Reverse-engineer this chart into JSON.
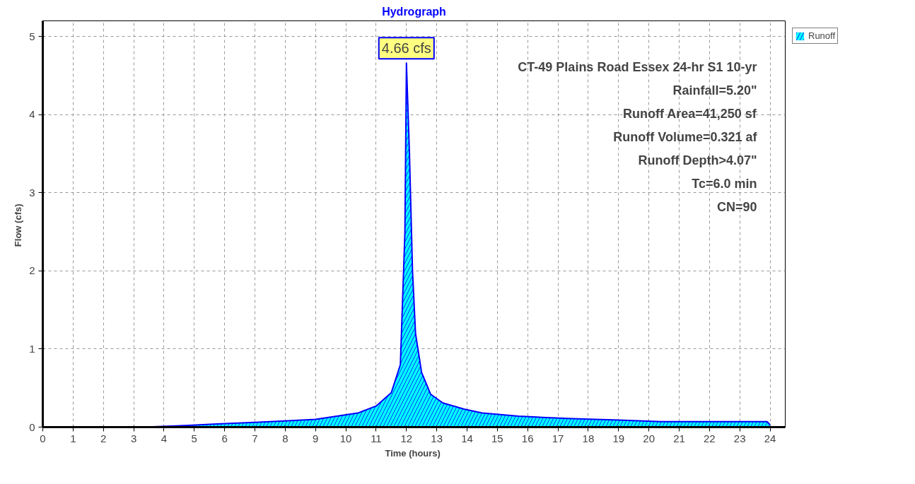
{
  "chart_data": {
    "type": "area",
    "title": "Hydrograph",
    "xlabel": "Time  (hours)",
    "ylabel": "Flow  (cfs)",
    "x": [
      0,
      1,
      2,
      3,
      3.3,
      4.7,
      5.75,
      7,
      8,
      9,
      10.4,
      11,
      11.5,
      11.8,
      11.95,
      12.0,
      12.1,
      12.2,
      12.3,
      12.5,
      12.8,
      13.2,
      13.9,
      14.5,
      15.7,
      17.3,
      19,
      20.4,
      22,
      23.9,
      24
    ],
    "series": [
      {
        "name": "Runoff",
        "color": "#00ffff",
        "values": [
          0,
          0,
          0,
          0,
          0,
          0.02,
          0.04,
          0.06,
          0.08,
          0.1,
          0.18,
          0.27,
          0.44,
          0.8,
          2.5,
          4.66,
          3.5,
          2.0,
          1.2,
          0.7,
          0.42,
          0.31,
          0.23,
          0.18,
          0.14,
          0.11,
          0.09,
          0.07,
          0.07,
          0.07,
          0.03
        ]
      }
    ],
    "xlim": [
      0,
      24.5
    ],
    "ylim": [
      0,
      5.2
    ],
    "xticks": [
      0,
      1,
      2,
      3,
      4,
      5,
      6,
      7,
      8,
      9,
      10,
      11,
      12,
      13,
      14,
      15,
      16,
      17,
      18,
      19,
      20,
      21,
      22,
      23,
      24
    ],
    "yticks": [
      0,
      1,
      2,
      3,
      4,
      5
    ],
    "grid": true,
    "legend": "top right",
    "annotations": [
      {
        "text": "4.66 cfs",
        "x": 12.0,
        "y": 4.66
      },
      "CT-49 Plains Road Essex 24-hr S1 10-yr",
      "Rainfall=5.20\"",
      "Runoff Area=41,250 sf",
      "Runoff Volume=0.321 af",
      "Runoff Depth>4.07\"",
      "Tc=6.0 min",
      "CN=90"
    ]
  }
}
